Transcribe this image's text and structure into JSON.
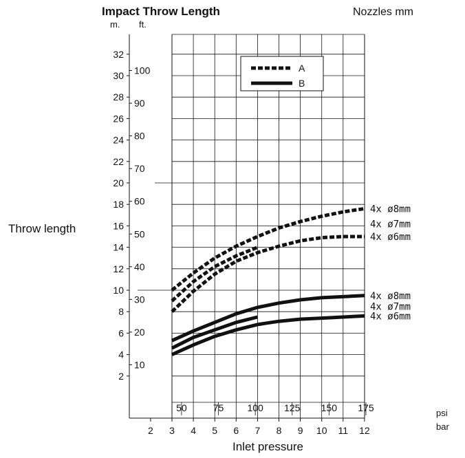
{
  "chart_data": {
    "type": "line",
    "title": "Impact Throw Length",
    "subtitle": "Nozzles mm",
    "ylabel": "Throw length",
    "xlabel": "Inlet pressure",
    "y_unit_m": "m.",
    "y_unit_ft": "ft.",
    "x_unit_psi": "psi",
    "x_unit_bar": "bar",
    "ylim": [
      0,
      34
    ],
    "xlim": [
      1,
      12
    ],
    "y_ticks_m": [
      "2",
      "4",
      "6",
      "8",
      "10",
      "12",
      "14",
      "16",
      "18",
      "20",
      "22",
      "24",
      "26",
      "28",
      "30",
      "32"
    ],
    "y_ticks_ft": [
      "10",
      "20",
      "30",
      "40",
      "50",
      "60",
      "70",
      "80",
      "90",
      "100"
    ],
    "x_ticks_bar": [
      "2",
      "3",
      "4",
      "5",
      "6",
      "7",
      "8",
      "9",
      "10",
      "11",
      "12"
    ],
    "x_ticks_psi": [
      "50",
      "75",
      "100",
      "125",
      "150",
      "175"
    ],
    "grid": true,
    "legend_position": "top-center",
    "legend": [
      {
        "label": "A",
        "style": "dashed"
      },
      {
        "label": "B",
        "style": "solid"
      }
    ],
    "series": [
      {
        "group": "A",
        "label": "4x  ø8mm",
        "x": [
          3,
          4,
          5,
          6,
          7,
          8,
          9,
          10,
          11,
          12
        ],
        "y": [
          10.0,
          11.6,
          13.0,
          14.1,
          15.0,
          15.8,
          16.4,
          16.9,
          17.3,
          17.6
        ]
      },
      {
        "group": "A",
        "label": "",
        "x": [
          3,
          4,
          5,
          6,
          7
        ],
        "y": [
          9.0,
          10.8,
          12.2,
          13.2,
          14.0
        ]
      },
      {
        "group": "A",
        "label": "4x  ø6mm",
        "x": [
          3,
          4,
          5,
          6,
          7,
          8,
          9,
          10,
          11,
          12
        ],
        "y": [
          8.0,
          9.9,
          11.5,
          12.7,
          13.5,
          14.1,
          14.6,
          14.9,
          15.0,
          15.0
        ]
      },
      {
        "group": "A",
        "label": "4x  ø7mm",
        "x": [
          12
        ],
        "y": [
          16.2
        ]
      },
      {
        "group": "B",
        "label": "4x  ø8mm",
        "x": [
          3,
          4,
          5,
          6,
          7,
          8,
          9,
          10,
          11,
          12
        ],
        "y": [
          5.3,
          6.2,
          7.0,
          7.8,
          8.4,
          8.8,
          9.1,
          9.3,
          9.4,
          9.5
        ]
      },
      {
        "group": "B",
        "label": "",
        "x": [
          3,
          4,
          5,
          6,
          7
        ],
        "y": [
          4.6,
          5.6,
          6.3,
          7.0,
          7.5
        ]
      },
      {
        "group": "B",
        "label": "4x  ø6mm",
        "x": [
          3,
          4,
          5,
          6,
          7,
          8,
          9,
          10,
          11,
          12
        ],
        "y": [
          4.0,
          4.9,
          5.7,
          6.3,
          6.8,
          7.1,
          7.3,
          7.4,
          7.5,
          7.6
        ]
      },
      {
        "group": "B",
        "label": "4x  ø7mm",
        "x": [
          12
        ],
        "y": [
          8.5
        ]
      }
    ]
  }
}
